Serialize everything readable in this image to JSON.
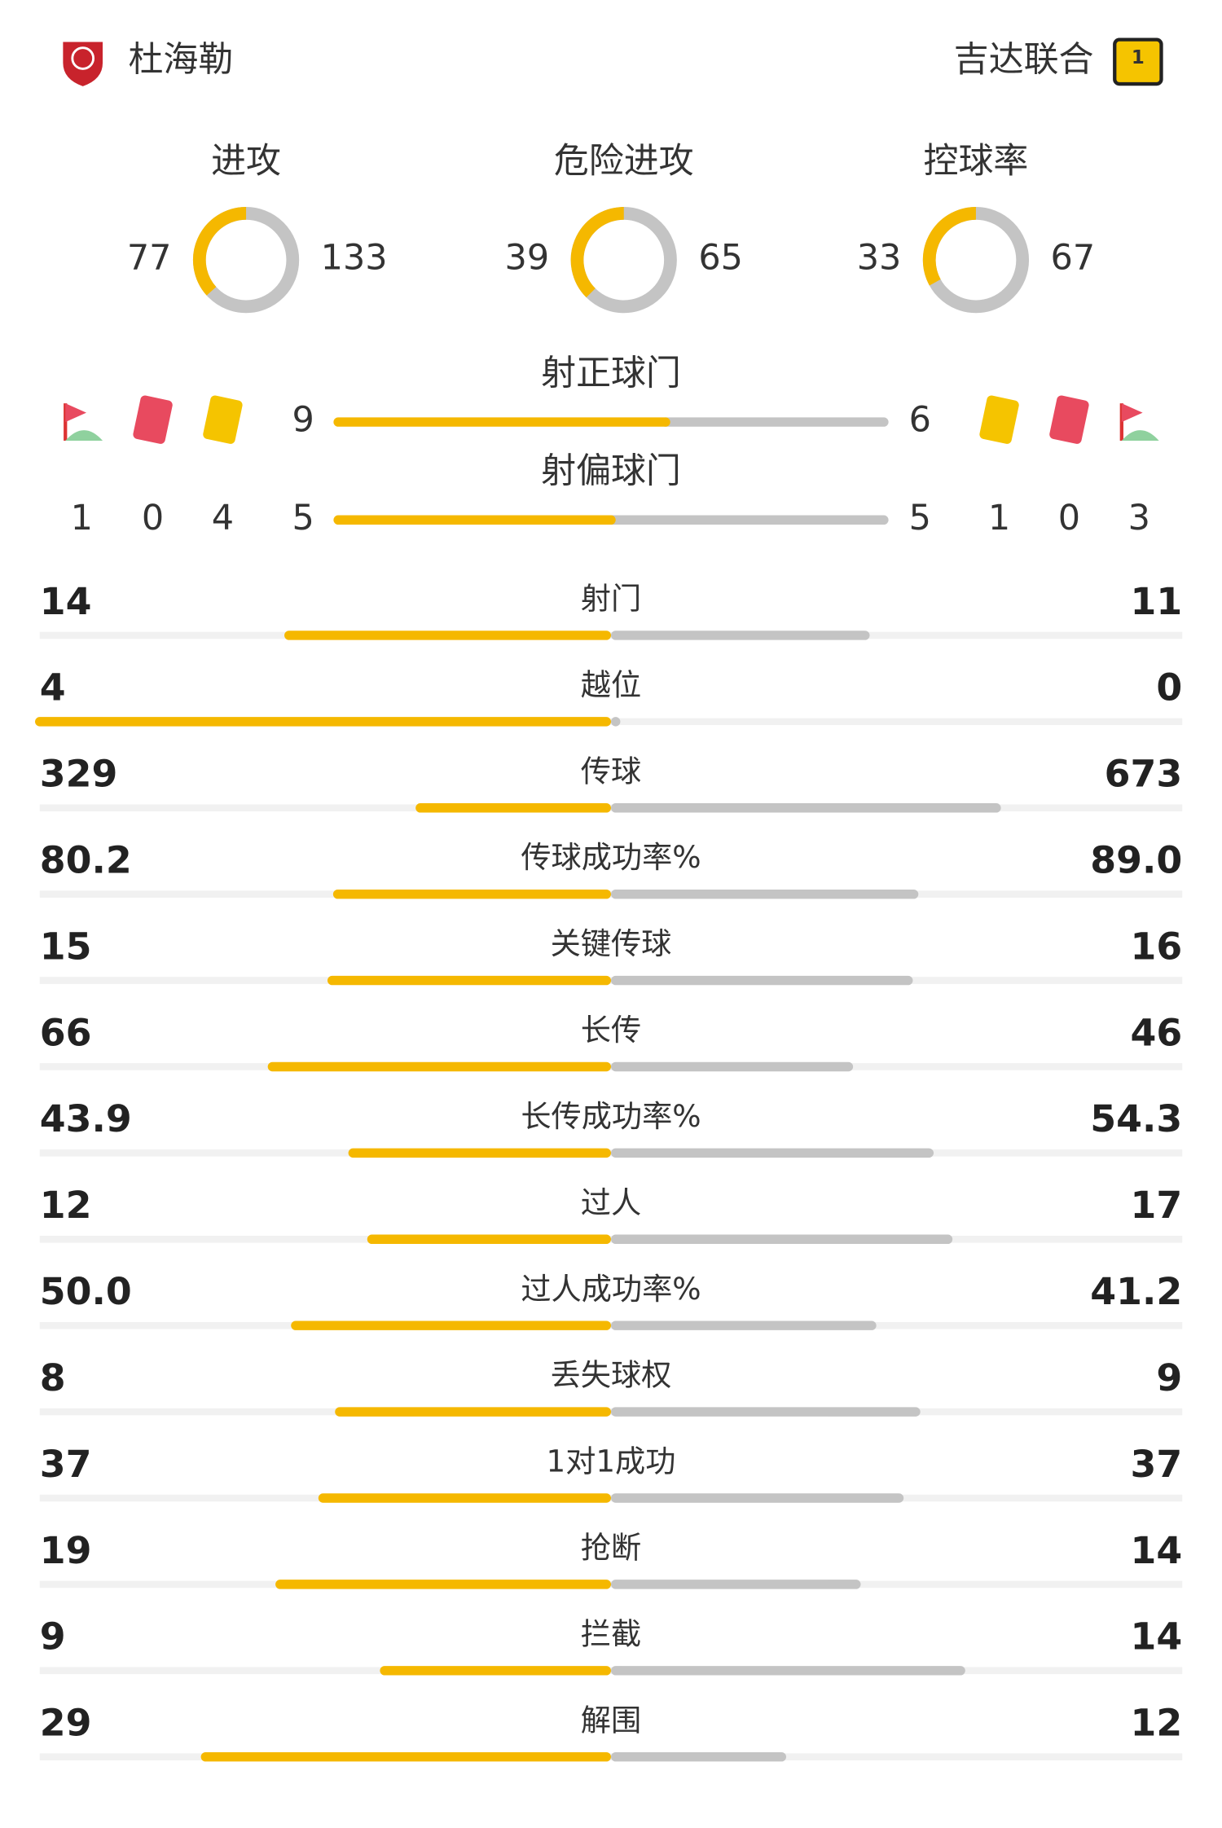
{
  "header": {
    "home": "杜海勒",
    "away": "吉达联合"
  },
  "rings": [
    {
      "label": "进攻",
      "home": 77,
      "away": 133
    },
    {
      "label": "危险进攻",
      "home": 39,
      "away": 65
    },
    {
      "label": "控球率",
      "home": 33,
      "away": 67
    }
  ],
  "bars": [
    {
      "label": "射正球门",
      "home": 9,
      "away": 6
    },
    {
      "label": "射偏球门",
      "home": 5,
      "away": 5
    }
  ],
  "home_counts": {
    "corners": 1,
    "red_cards": 0,
    "yellow_cards": 4
  },
  "away_counts": {
    "yellow_cards": 1,
    "red_cards": 0,
    "corners": 3
  },
  "stats": [
    {
      "label": "射门",
      "home": 14,
      "away": 11
    },
    {
      "label": "越位",
      "home": 4,
      "away": 0
    },
    {
      "label": "传球",
      "home": 329,
      "away": 673
    },
    {
      "label": "传球成功率%",
      "home": 80.2,
      "away": {
        "value": 89.0,
        "label": "89.0"
      }
    },
    {
      "label": "关键传球",
      "home": 15,
      "away": 16
    },
    {
      "label": "长传",
      "home": 66,
      "away": 46
    },
    {
      "label": "长传成功率%",
      "home": 43.9,
      "away": 54.3
    },
    {
      "label": "过人",
      "home": 12,
      "away": 17
    },
    {
      "label": "过人成功率%",
      "home": {
        "value": 50.0,
        "label": "50.0"
      },
      "away": 41.2
    },
    {
      "label": "丢失球权",
      "home": 8,
      "away": 9
    },
    {
      "label": "1对1成功",
      "home": 37,
      "away": 37
    },
    {
      "label": "抢断",
      "home": 19,
      "away": 14
    },
    {
      "label": "拦截",
      "home": 9,
      "away": 14
    },
    {
      "label": "解围",
      "home": 29,
      "away": 12
    }
  ]
}
